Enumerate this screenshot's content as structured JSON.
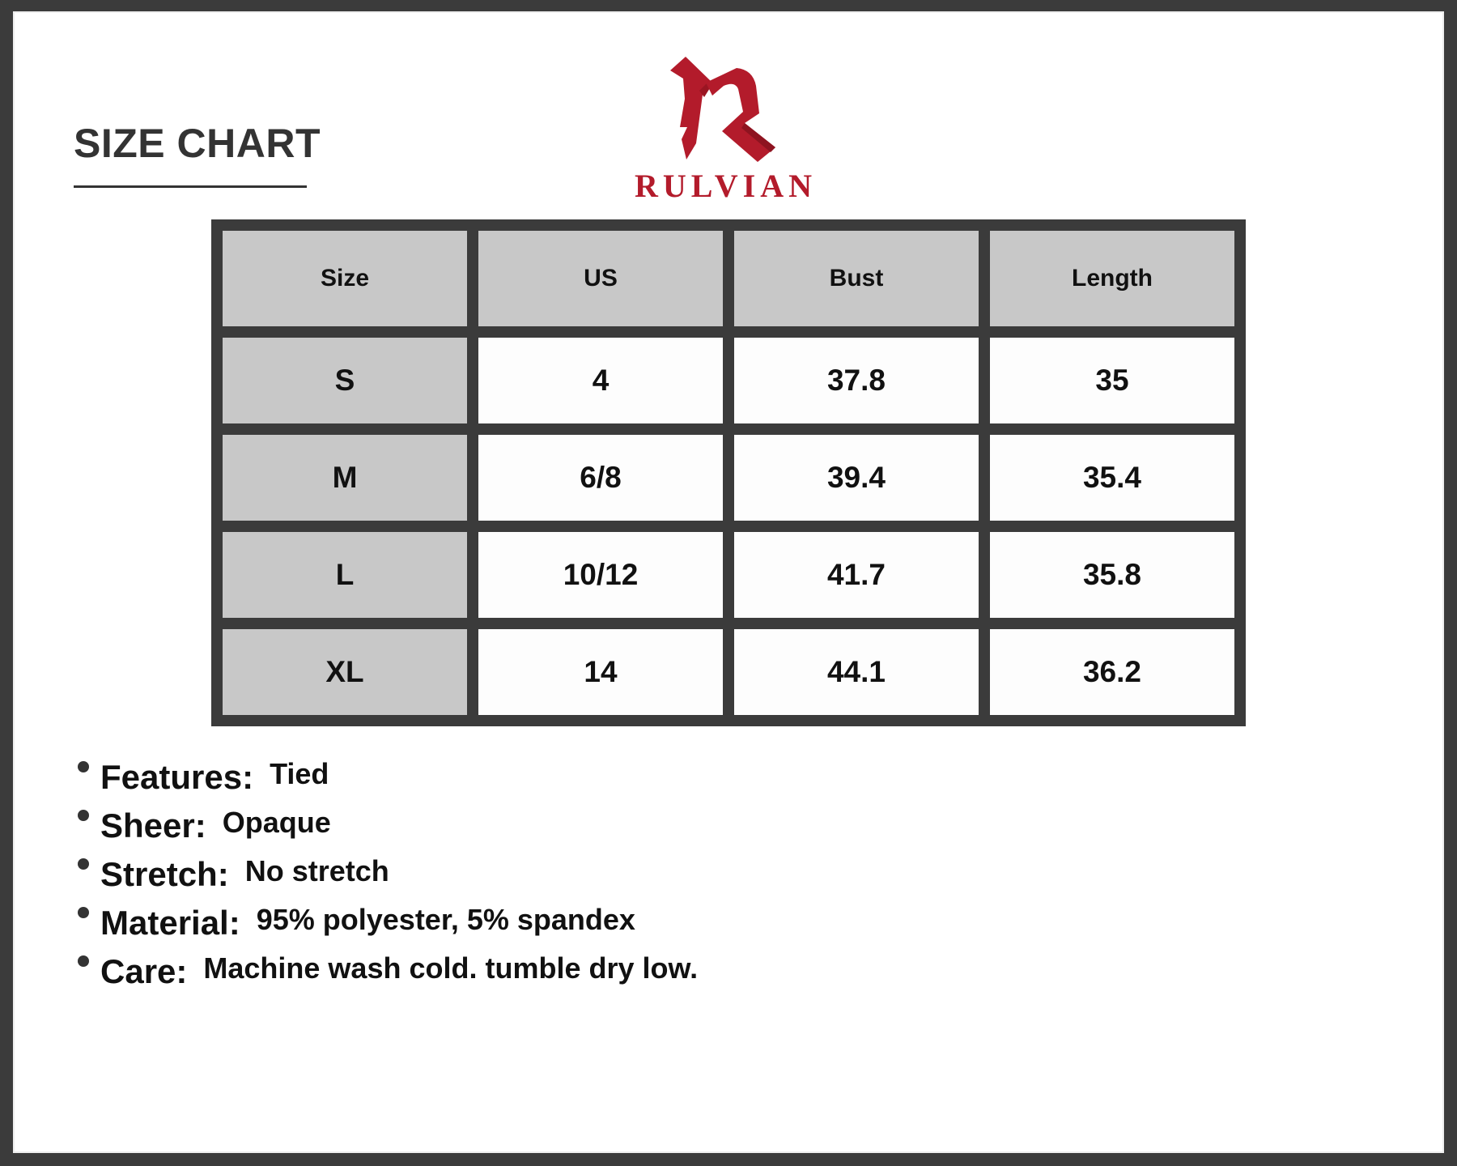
{
  "title": "SIZE CHART",
  "brand": {
    "name": "RULVIAN",
    "color": "#b31b2b"
  },
  "table": {
    "headers": [
      "Size",
      "US",
      "Bust",
      "Length"
    ],
    "rows": [
      [
        "S",
        "4",
        "37.8",
        "35"
      ],
      [
        "M",
        "6/8",
        "39.4",
        "35.4"
      ],
      [
        "L",
        "10/12",
        "41.7",
        "35.8"
      ],
      [
        "XL",
        "14",
        "44.1",
        "36.2"
      ]
    ]
  },
  "features": [
    {
      "label": "Features:",
      "value": "Tied"
    },
    {
      "label": "Sheer:",
      "value": "Opaque"
    },
    {
      "label": "Stretch:",
      "value": "No stretch"
    },
    {
      "label": "Material:",
      "value": "95% polyester, 5% spandex"
    },
    {
      "label": "Care:",
      "value": "Machine wash cold. tumble dry low."
    }
  ]
}
